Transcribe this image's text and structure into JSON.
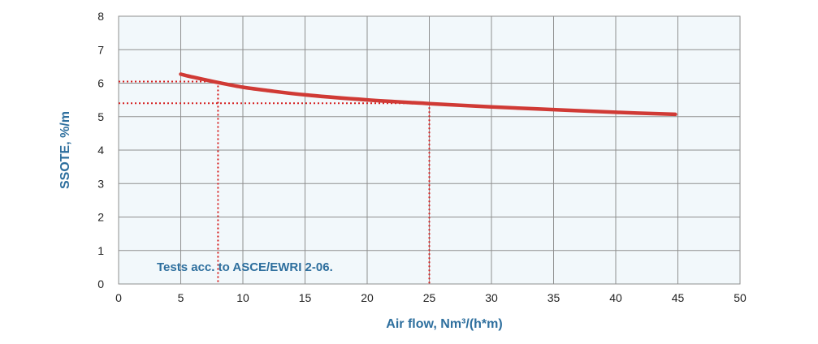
{
  "chart_data": {
    "type": "line",
    "xlabel": "Air flow, Nm³/(h*m)",
    "ylabel": "SSOTE, %/m",
    "xlim": [
      0,
      50
    ],
    "ylim": [
      0,
      8
    ],
    "xticks": [
      "0",
      "5",
      "10",
      "15",
      "20",
      "25",
      "30",
      "35",
      "40",
      "45",
      "50"
    ],
    "yticks": [
      "0",
      "1",
      "2",
      "3",
      "4",
      "5",
      "6",
      "7",
      "8"
    ],
    "grid": true,
    "series": [
      {
        "x": [
          5,
          6,
          8,
          10,
          12,
          15,
          20,
          25,
          30,
          35,
          40,
          44.8
        ],
        "y": [
          6.27,
          6.18,
          6.02,
          5.88,
          5.78,
          5.65,
          5.5,
          5.39,
          5.29,
          5.21,
          5.13,
          5.07
        ]
      }
    ],
    "reference_lines": [
      {
        "x": 8,
        "y": 6.05
      },
      {
        "x": 25,
        "y": 5.4
      }
    ],
    "annotation": "Tests acc. to ASCE/EWRI 2-06.",
    "colors": {
      "series": "#d03a35",
      "reference": "#d62020",
      "grid": "#8f8f8f",
      "plot_background": "#f2f8fb",
      "label_text": "#2e6f9e"
    }
  }
}
